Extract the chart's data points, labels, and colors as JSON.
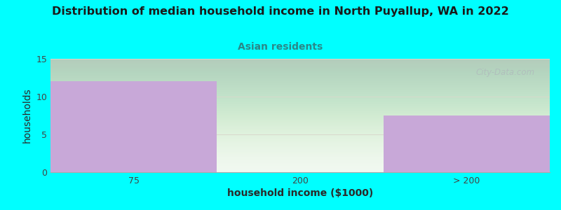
{
  "title": "Distribution of median household income in North Puyallup, WA in 2022",
  "subtitle": "Asian residents",
  "xlabel": "household income ($1000)",
  "ylabel": "households",
  "categories": [
    "75",
    "200",
    "> 200"
  ],
  "values": [
    12,
    0,
    7.5
  ],
  "bar_color": "#c8a8d8",
  "bar_alpha": 1.0,
  "ylim": [
    0,
    15
  ],
  "yticks": [
    0,
    5,
    10,
    15
  ],
  "background_color": "#00ffff",
  "title_color": "#1a1a1a",
  "subtitle_color": "#2a8888",
  "axis_label_color": "#2a2a2a",
  "tick_color": "#444444",
  "grid_color": "#d8d8cc",
  "watermark_text": "City-Data.com",
  "watermark_color": "#b0bcbc"
}
